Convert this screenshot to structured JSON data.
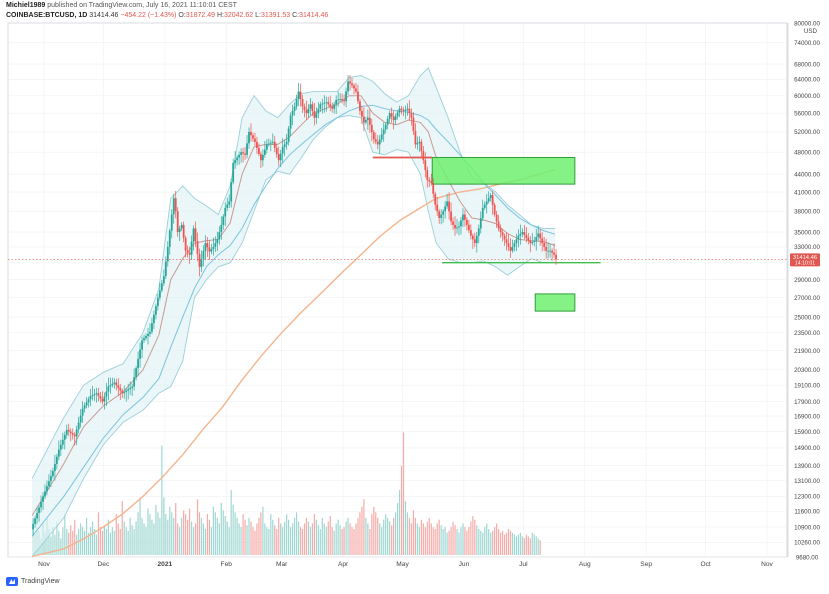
{
  "header": {
    "author": "Michiel1989",
    "published": "published on TradingView.com, July 16, 2021 11:10:01 CEST",
    "symbol": "COINBASE:BTCUSD, 1D",
    "last": "31414.46",
    "change": "−454.22 (−1.43%)",
    "o_label": "O:",
    "o_val": "31872.49",
    "h_label": "H:",
    "h_val": "32042.62",
    "l_label": "L:",
    "l_val": "31391.53",
    "c_label": "C:",
    "c_val": "31414.46"
  },
  "footer": {
    "brand": "TradingView"
  },
  "colors": {
    "up": "#26a69a",
    "down": "#ef5350",
    "bb_fill": "#dff1f3",
    "bb_line": "#9ccfd9",
    "ma_short": "#c99b96",
    "ma_mid": "#7cc3e0",
    "ma_long": "#f4b48c",
    "zone": "#6ff06f",
    "level_green": "#3fbf4a",
    "level_red": "#e0574f"
  },
  "chart_data": {
    "type": "candlestick",
    "symbol": "COINBASE:BTCUSD",
    "interval": "1D",
    "currency": "USD",
    "scale": "log",
    "ylim": [
      9680,
      80000
    ],
    "y_ticks": [
      "80000.00",
      "74000.00",
      "68000.00",
      "64000.00",
      "60000.00",
      "56000.00",
      "52000.00",
      "48000.00",
      "44000.00",
      "41000.00",
      "38000.00",
      "35000.00",
      "33000.00",
      "31000.00",
      "29000.00",
      "27000.00",
      "25000.00",
      "23500.00",
      "21900.00",
      "20300.00",
      "19100.00",
      "17900.00",
      "16900.00",
      "15900.00",
      "14900.00",
      "13900.00",
      "13100.00",
      "12300.00",
      "11600.00",
      "10900.00",
      "10260.00",
      "9680.00"
    ],
    "y_tick_values": [
      80000,
      74000,
      68000,
      64000,
      60000,
      56000,
      52000,
      48000,
      44000,
      41000,
      38000,
      35000,
      33000,
      31000,
      29000,
      27000,
      25000,
      23500,
      21900,
      20300,
      19100,
      17900,
      16900,
      15900,
      14900,
      13900,
      13100,
      12300,
      11600,
      10900,
      10260,
      9680
    ],
    "x_ticks": [
      "Nov",
      "Dec",
      "2021",
      "Feb",
      "Mar",
      "Apr",
      "May",
      "Jun",
      "Jul",
      "Aug",
      "Sep",
      "Oct",
      "Nov"
    ],
    "x_tick_days": [
      0,
      30,
      61,
      92,
      120,
      151,
      181,
      212,
      242,
      273,
      304,
      334,
      365
    ],
    "last_price": "31414.46",
    "last_time": "14:10:01",
    "grid": true,
    "price_path": [
      [
        -6,
        10800
      ],
      [
        0,
        12300
      ],
      [
        5,
        13600
      ],
      [
        8,
        14800
      ],
      [
        12,
        16000
      ],
      [
        16,
        15600
      ],
      [
        20,
        17400
      ],
      [
        24,
        18300
      ],
      [
        27,
        18500
      ],
      [
        30,
        17900
      ],
      [
        33,
        19000
      ],
      [
        36,
        19300
      ],
      [
        40,
        18500
      ],
      [
        45,
        19000
      ],
      [
        50,
        22800
      ],
      [
        54,
        23600
      ],
      [
        58,
        27000
      ],
      [
        61,
        29400
      ],
      [
        63,
        33000
      ],
      [
        66,
        40000
      ],
      [
        67,
        38000
      ],
      [
        68,
        35000
      ],
      [
        70,
        36000
      ],
      [
        72,
        32500
      ],
      [
        74,
        32000
      ],
      [
        76,
        35500
      ],
      [
        79,
        30500
      ],
      [
        82,
        33500
      ],
      [
        84,
        32400
      ],
      [
        86,
        33000
      ],
      [
        88,
        34000
      ],
      [
        90,
        36000
      ],
      [
        92,
        38500
      ],
      [
        94,
        39500
      ],
      [
        96,
        46000
      ],
      [
        98,
        47000
      ],
      [
        100,
        48000
      ],
      [
        102,
        47500
      ],
      [
        104,
        52000
      ],
      [
        107,
        50000
      ],
      [
        110,
        46500
      ],
      [
        113,
        49500
      ],
      [
        116,
        50000
      ],
      [
        119,
        46500
      ],
      [
        121,
        49000
      ],
      [
        123,
        50000
      ],
      [
        125,
        55500
      ],
      [
        127,
        57500
      ],
      [
        129,
        61000
      ],
      [
        131,
        57500
      ],
      [
        133,
        56000
      ],
      [
        135,
        58000
      ],
      [
        137,
        55000
      ],
      [
        140,
        58000
      ],
      [
        143,
        58500
      ],
      [
        146,
        57000
      ],
      [
        148,
        59000
      ],
      [
        150,
        59200
      ],
      [
        152,
        58700
      ],
      [
        154,
        63500
      ],
      [
        156,
        62500
      ],
      [
        158,
        61000
      ],
      [
        160,
        56500
      ],
      [
        162,
        54000
      ],
      [
        164,
        55000
      ],
      [
        167,
        50500
      ],
      [
        169,
        49500
      ],
      [
        171,
        51500
      ],
      [
        173,
        53500
      ],
      [
        175,
        56000
      ],
      [
        177,
        54500
      ],
      [
        180,
        57000
      ],
      [
        182,
        56500
      ],
      [
        184,
        57000
      ],
      [
        186,
        55000
      ],
      [
        188,
        49500
      ],
      [
        190,
        50000
      ],
      [
        192,
        46500
      ],
      [
        194,
        43000
      ],
      [
        196,
        42500
      ],
      [
        198,
        39000
      ],
      [
        200,
        37000
      ],
      [
        202,
        38000
      ],
      [
        204,
        39500
      ],
      [
        206,
        36500
      ],
      [
        208,
        35500
      ],
      [
        210,
        35800
      ],
      [
        212,
        37500
      ],
      [
        214,
        36000
      ],
      [
        216,
        34500
      ],
      [
        218,
        33500
      ],
      [
        220,
        35500
      ],
      [
        222,
        38500
      ],
      [
        224,
        39500
      ],
      [
        226,
        40500
      ],
      [
        228,
        37500
      ],
      [
        230,
        35500
      ],
      [
        232,
        34500
      ],
      [
        234,
        33500
      ],
      [
        236,
        32500
      ],
      [
        238,
        33500
      ],
      [
        240,
        34500
      ],
      [
        242,
        35000
      ],
      [
        244,
        34200
      ],
      [
        246,
        33500
      ],
      [
        248,
        33800
      ],
      [
        250,
        34800
      ],
      [
        252,
        33500
      ],
      [
        254,
        32500
      ],
      [
        256,
        32500
      ],
      [
        258,
        32000
      ],
      [
        259,
        31414
      ]
    ],
    "bollinger": {
      "upper": [
        [
          -6,
          13200
        ],
        [
          10,
          16800
        ],
        [
          20,
          19100
        ],
        [
          30,
          20100
        ],
        [
          40,
          20800
        ],
        [
          50,
          23500
        ],
        [
          58,
          28000
        ],
        [
          64,
          40000
        ],
        [
          70,
          42000
        ],
        [
          76,
          40000
        ],
        [
          82,
          38800
        ],
        [
          88,
          37500
        ],
        [
          94,
          42000
        ],
        [
          100,
          55000
        ],
        [
          106,
          60000
        ],
        [
          112,
          56500
        ],
        [
          118,
          55000
        ],
        [
          124,
          58000
        ],
        [
          130,
          60500
        ],
        [
          136,
          61000
        ],
        [
          142,
          61000
        ],
        [
          148,
          61000
        ],
        [
          154,
          64500
        ],
        [
          160,
          65000
        ],
        [
          166,
          63500
        ],
        [
          172,
          60500
        ],
        [
          178,
          58500
        ],
        [
          184,
          60000
        ],
        [
          190,
          65000
        ],
        [
          194,
          67000
        ],
        [
          198,
          62000
        ],
        [
          204,
          55000
        ],
        [
          210,
          48000
        ],
        [
          216,
          43500
        ],
        [
          222,
          42500
        ],
        [
          228,
          41000
        ],
        [
          234,
          39000
        ],
        [
          240,
          37500
        ],
        [
          246,
          36000
        ],
        [
          252,
          35500
        ],
        [
          258,
          35500
        ]
      ],
      "lower": [
        [
          -6,
          9700
        ],
        [
          10,
          11300
        ],
        [
          20,
          13200
        ],
        [
          30,
          15100
        ],
        [
          40,
          16500
        ],
        [
          50,
          17300
        ],
        [
          58,
          18500
        ],
        [
          64,
          19000
        ],
        [
          70,
          21000
        ],
        [
          76,
          27000
        ],
        [
          82,
          29000
        ],
        [
          88,
          30500
        ],
        [
          94,
          31000
        ],
        [
          100,
          33500
        ],
        [
          106,
          38000
        ],
        [
          112,
          43000
        ],
        [
          118,
          44500
        ],
        [
          124,
          44000
        ],
        [
          130,
          47000
        ],
        [
          136,
          50500
        ],
        [
          142,
          53000
        ],
        [
          148,
          55000
        ],
        [
          154,
          55500
        ],
        [
          160,
          55000
        ],
        [
          166,
          48000
        ],
        [
          172,
          47500
        ],
        [
          178,
          48500
        ],
        [
          184,
          48000
        ],
        [
          190,
          44000
        ],
        [
          194,
          38000
        ],
        [
          198,
          33500
        ],
        [
          204,
          31500
        ],
        [
          210,
          31000
        ],
        [
          216,
          31000
        ],
        [
          222,
          31200
        ],
        [
          228,
          30500
        ],
        [
          234,
          29500
        ],
        [
          240,
          30500
        ],
        [
          246,
          31500
        ],
        [
          252,
          31000
        ],
        [
          258,
          31000
        ]
      ]
    },
    "ma_short": [
      [
        -6,
        11400
      ],
      [
        10,
        14000
      ],
      [
        20,
        16200
      ],
      [
        30,
        17600
      ],
      [
        40,
        18600
      ],
      [
        50,
        20300
      ],
      [
        58,
        23300
      ],
      [
        64,
        29000
      ],
      [
        70,
        31500
      ],
      [
        76,
        33500
      ],
      [
        82,
        33800
      ],
      [
        88,
        34000
      ],
      [
        94,
        36300
      ],
      [
        100,
        44000
      ],
      [
        106,
        49000
      ],
      [
        112,
        49500
      ],
      [
        118,
        49500
      ],
      [
        124,
        51000
      ],
      [
        130,
        53500
      ],
      [
        136,
        56000
      ],
      [
        142,
        57000
      ],
      [
        148,
        58000
      ],
      [
        154,
        60000
      ],
      [
        160,
        60000
      ],
      [
        166,
        56000
      ],
      [
        172,
        54000
      ],
      [
        178,
        53500
      ],
      [
        184,
        54500
      ],
      [
        190,
        54000
      ],
      [
        194,
        52000
      ],
      [
        198,
        47000
      ],
      [
        204,
        43000
      ],
      [
        210,
        39500
      ],
      [
        216,
        37000
      ],
      [
        222,
        36700
      ],
      [
        228,
        36200
      ],
      [
        234,
        34800
      ],
      [
        240,
        34000
      ],
      [
        246,
        33800
      ],
      [
        252,
        33700
      ],
      [
        258,
        33200
      ]
    ],
    "ma_mid": [
      [
        -6,
        10500
      ],
      [
        10,
        12300
      ],
      [
        20,
        13800
      ],
      [
        30,
        15500
      ],
      [
        40,
        17000
      ],
      [
        50,
        18200
      ],
      [
        58,
        19600
      ],
      [
        64,
        22200
      ],
      [
        70,
        25000
      ],
      [
        76,
        28000
      ],
      [
        82,
        30500
      ],
      [
        88,
        32000
      ],
      [
        94,
        33200
      ],
      [
        100,
        35500
      ],
      [
        106,
        39000
      ],
      [
        112,
        42000
      ],
      [
        118,
        45000
      ],
      [
        124,
        47500
      ],
      [
        130,
        49500
      ],
      [
        136,
        51500
      ],
      [
        142,
        53500
      ],
      [
        148,
        55000
      ],
      [
        154,
        56500
      ],
      [
        160,
        57500
      ],
      [
        166,
        57800
      ],
      [
        172,
        57000
      ],
      [
        178,
        56500
      ],
      [
        184,
        56200
      ],
      [
        190,
        55500
      ],
      [
        194,
        54500
      ],
      [
        198,
        52500
      ],
      [
        204,
        50000
      ],
      [
        210,
        47500
      ],
      [
        216,
        45000
      ],
      [
        222,
        42500
      ],
      [
        228,
        40500
      ],
      [
        234,
        38500
      ],
      [
        240,
        37000
      ],
      [
        246,
        36000
      ],
      [
        252,
        35200
      ],
      [
        258,
        34700
      ]
    ],
    "ma_long": [
      [
        -6,
        9700
      ],
      [
        10,
        10000
      ],
      [
        20,
        10400
      ],
      [
        30,
        10900
      ],
      [
        40,
        11500
      ],
      [
        50,
        12300
      ],
      [
        60,
        13300
      ],
      [
        70,
        14500
      ],
      [
        80,
        16000
      ],
      [
        90,
        17500
      ],
      [
        100,
        19500
      ],
      [
        110,
        21500
      ],
      [
        120,
        23500
      ],
      [
        130,
        25500
      ],
      [
        140,
        27500
      ],
      [
        150,
        29700
      ],
      [
        160,
        32000
      ],
      [
        170,
        34500
      ],
      [
        180,
        36700
      ],
      [
        190,
        38500
      ],
      [
        198,
        40000
      ],
      [
        210,
        41000
      ],
      [
        220,
        41500
      ],
      [
        230,
        42300
      ],
      [
        240,
        43000
      ],
      [
        250,
        44000
      ],
      [
        258,
        44800
      ]
    ],
    "volume": [
      38,
      22,
      30,
      26,
      18,
      34,
      24,
      40,
      28,
      20,
      30,
      22,
      36,
      26,
      18,
      30,
      44,
      28,
      24,
      32,
      26,
      38,
      22,
      28,
      34,
      30,
      26,
      40,
      24,
      30,
      36,
      28,
      22,
      46,
      30,
      26,
      32,
      28,
      38,
      24,
      30,
      26,
      44,
      34,
      28,
      58,
      36,
      30,
      26,
      40,
      32,
      28,
      36,
      46,
      62,
      40,
      34,
      30,
      50,
      44,
      38,
      34,
      54,
      46,
      40,
      118,
      62,
      44,
      38,
      52,
      46,
      40,
      56,
      34,
      30,
      40,
      48,
      44,
      38,
      50,
      36,
      30,
      34,
      60,
      46,
      40,
      34,
      28,
      44,
      38,
      30,
      52,
      46,
      40,
      34,
      56,
      48,
      42,
      36,
      30,
      70,
      54,
      46,
      40,
      34,
      30,
      44,
      38,
      32,
      40,
      36,
      30,
      26,
      34,
      40,
      46,
      52,
      34,
      30,
      28,
      44,
      38,
      32,
      28,
      40,
      34,
      30,
      36,
      44,
      38,
      30,
      34,
      40,
      46,
      36,
      30,
      28,
      34,
      40,
      36,
      30,
      34,
      44,
      38,
      32,
      28,
      40,
      34,
      30,
      36,
      42,
      30,
      26,
      34,
      38,
      32,
      28,
      30,
      36,
      40,
      34,
      30,
      28,
      34,
      40,
      46,
      52,
      60,
      40,
      34,
      28,
      44,
      52,
      46,
      40,
      34,
      30,
      38,
      44,
      40,
      36,
      32,
      40,
      46,
      56,
      70,
      96,
      132,
      58,
      46,
      40,
      34,
      48,
      40,
      34,
      30,
      38,
      34,
      30,
      36,
      40,
      34,
      30,
      28,
      34,
      38,
      32,
      28,
      30,
      24,
      26,
      30,
      36,
      32,
      28,
      24,
      30,
      34,
      30,
      26,
      30,
      36,
      42,
      38,
      32,
      28,
      26,
      24,
      30,
      34,
      28,
      24,
      26,
      30,
      34,
      28,
      24,
      26,
      22,
      24,
      28,
      26,
      24,
      22,
      20,
      22,
      24,
      20,
      18,
      22,
      20,
      18,
      24,
      22,
      20,
      18,
      16
    ],
    "volume_range": [
      0,
      140
    ],
    "annotations": {
      "support_green": {
        "price": 31000,
        "from_day": 201,
        "to_day": 281
      },
      "resistance_red": {
        "price": 47000,
        "from_day": 166,
        "to_day": 196
      },
      "zone_upper": {
        "top": 47000,
        "bottom": 42300,
        "from_day": 196,
        "to_day": 268
      },
      "zone_lower": {
        "top": 27400,
        "bottom": 25600,
        "from_day": 248,
        "to_day": 268
      }
    }
  }
}
